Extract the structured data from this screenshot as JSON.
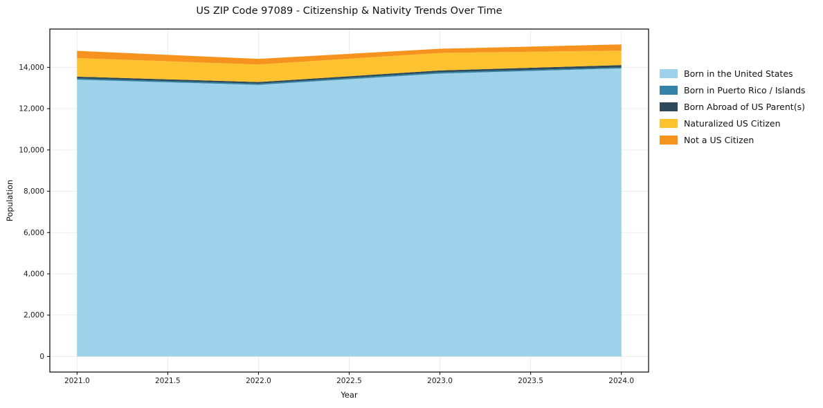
{
  "chart_data": {
    "type": "area",
    "stacked": true,
    "title": "US ZIP Code 97089 - Citizenship & Nativity Trends Over Time",
    "xlabel": "Year",
    "ylabel": "Population",
    "x": [
      2021,
      2022,
      2023,
      2024
    ],
    "series": [
      {
        "name": "Born in the United States",
        "color": "#9ed2ea",
        "values": [
          13400,
          13150,
          13700,
          13950
        ]
      },
      {
        "name": "Born in Puerto Rico / Islands",
        "color": "#3584a7",
        "values": [
          60,
          60,
          60,
          50
        ]
      },
      {
        "name": "Born Abroad of US Parent(s)",
        "color": "#2c4a5a",
        "values": [
          90,
          80,
          90,
          110
        ]
      },
      {
        "name": "Naturalized US Citizen",
        "color": "#fdc230",
        "values": [
          900,
          850,
          850,
          700
        ]
      },
      {
        "name": "Not a US Citizen",
        "color": "#f6921e",
        "values": [
          350,
          270,
          200,
          300
        ]
      }
    ],
    "xticks": {
      "values": [
        2021.0,
        2021.5,
        2022.0,
        2022.5,
        2023.0,
        2023.5,
        2024.0
      ],
      "labels": [
        "2021.0",
        "2021.5",
        "2022.0",
        "2022.5",
        "2023.0",
        "2023.5",
        "2024.0"
      ]
    },
    "yticks": {
      "values": [
        0,
        2000,
        4000,
        6000,
        8000,
        10000,
        12000,
        14000
      ],
      "labels": [
        "0",
        "2,000",
        "4,000",
        "6,000",
        "8,000",
        "10,000",
        "12,000",
        "14,000"
      ]
    },
    "xlim": [
      2020.85,
      2024.15
    ],
    "ylim": [
      -755,
      15855
    ],
    "grid": true,
    "legend_position": "right"
  }
}
